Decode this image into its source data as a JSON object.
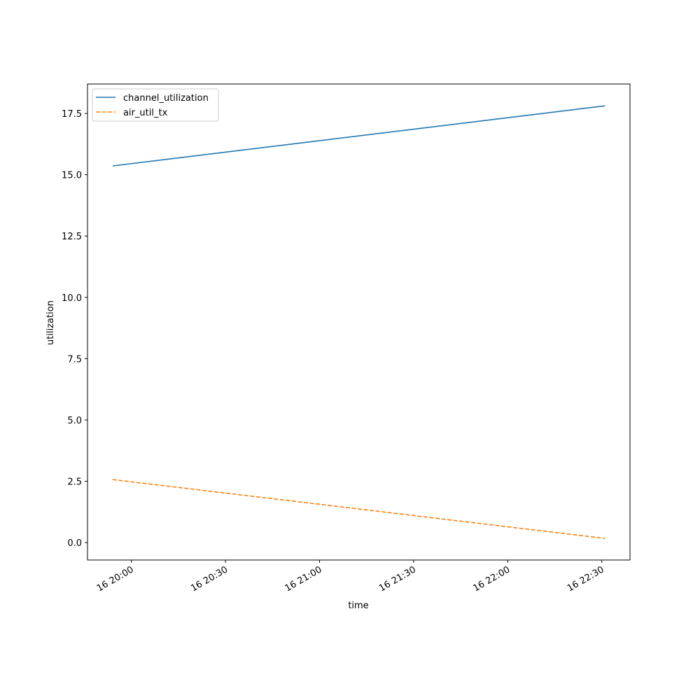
{
  "chart_data": {
    "type": "line",
    "x": [
      "16 19:54",
      "16 22:31"
    ],
    "series": [
      {
        "name": "channel_utilization",
        "color": "#1f77b4",
        "linestyle": "solid",
        "values": [
          15.36,
          17.81
        ]
      },
      {
        "name": "air_util_tx",
        "color": "#ff7f0e",
        "linestyle": "dashed",
        "values": [
          2.57,
          0.17
        ]
      }
    ],
    "xlabel": "time",
    "ylabel": "utilization",
    "xlim": [
      "16 19:46",
      "16 22:39"
    ],
    "xticks": [
      "16 20:00",
      "16 20:30",
      "16 21:00",
      "16 21:30",
      "16 22:00",
      "16 22:30"
    ],
    "ylim": [
      -0.71,
      18.7
    ],
    "yticks": [
      {
        "value": 0,
        "label": "0.0"
      },
      2.5,
      {
        "value": 5,
        "label": "5.0"
      },
      7.5,
      {
        "value": 10,
        "label": "10.0"
      },
      12.5,
      {
        "value": 15,
        "label": "15.0"
      },
      17.5
    ],
    "grid": false,
    "legend": "upper left"
  }
}
